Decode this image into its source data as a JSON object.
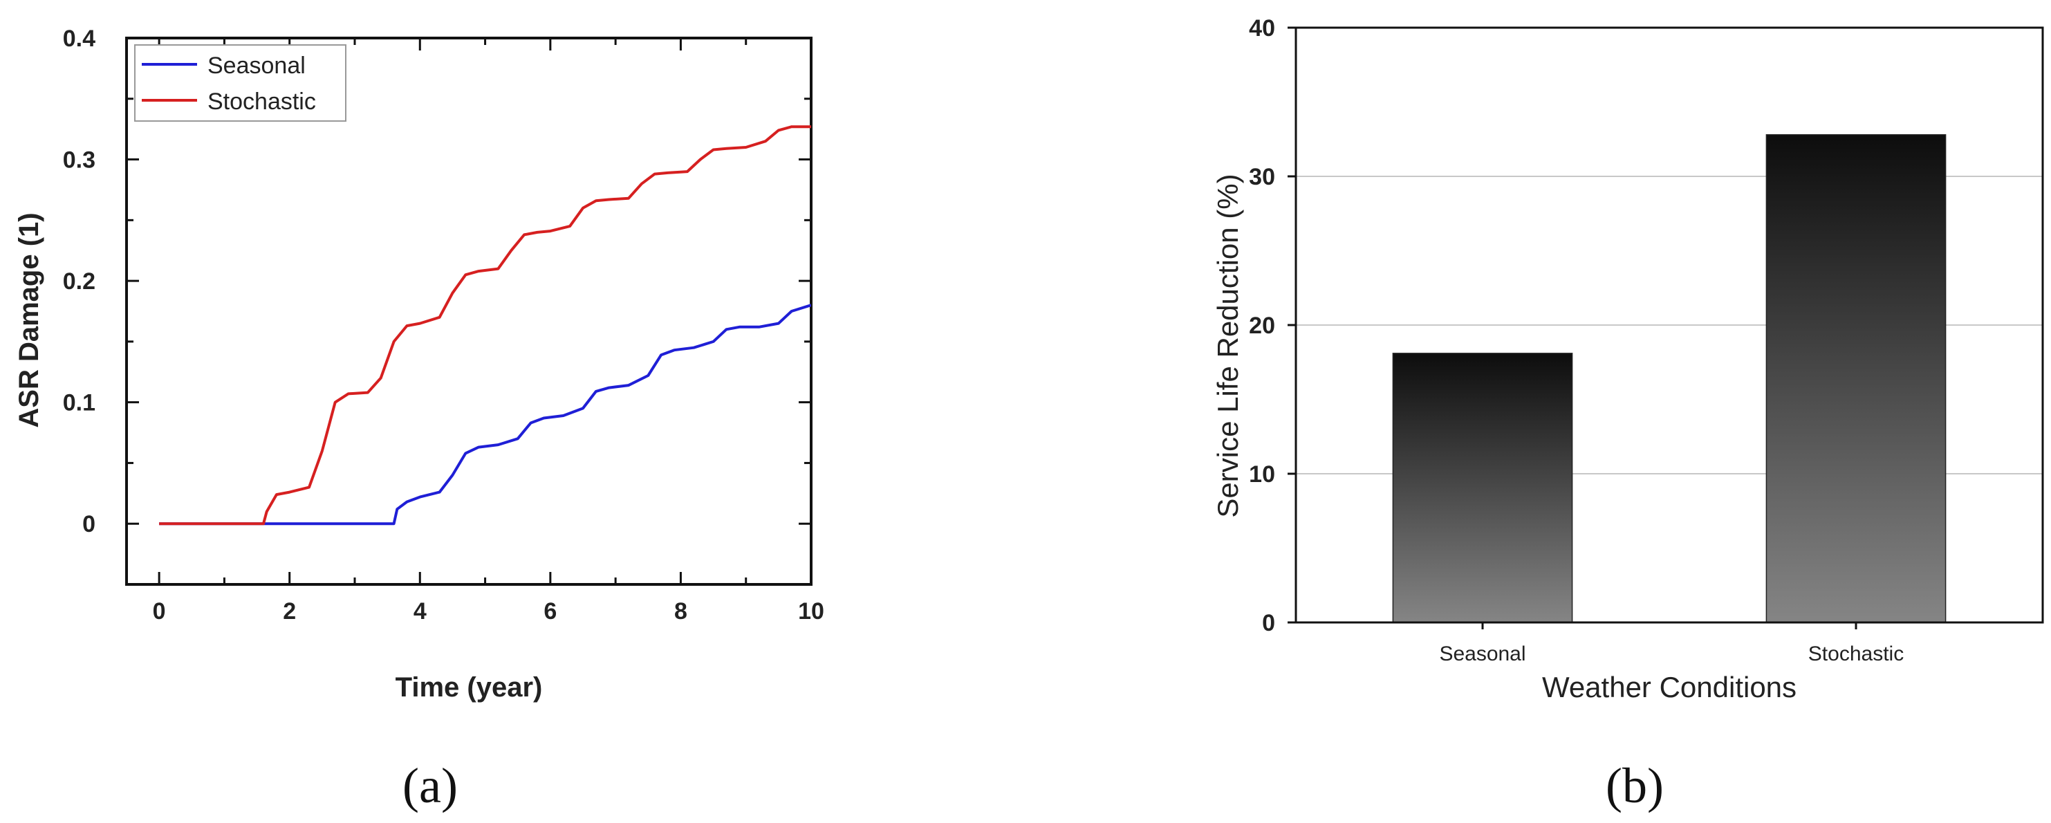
{
  "chart_data": [
    {
      "panel_label": "(a)",
      "type": "line",
      "xlabel": "Time (year)",
      "ylabel": "ASR Damage (1)",
      "xlim": [
        -0.5,
        10
      ],
      "ylim": [
        -0.05,
        0.4
      ],
      "xticks": [
        "0",
        "2",
        "4",
        "6",
        "8",
        "10"
      ],
      "yticks": [
        "0",
        "0.1",
        "0.2",
        "0.3",
        "0.4"
      ],
      "legend": "top-left",
      "series": [
        {
          "name": "Seasonal",
          "color": "#1f1fd6",
          "x": [
            0,
            1,
            2,
            3,
            3.6,
            3.65,
            3.8,
            4.0,
            4.3,
            4.5,
            4.7,
            4.9,
            5.2,
            5.5,
            5.7,
            5.9,
            6.2,
            6.5,
            6.7,
            6.9,
            7.2,
            7.5,
            7.7,
            7.9,
            8.2,
            8.5,
            8.7,
            8.9,
            9.2,
            9.5,
            9.7,
            10.0
          ],
          "y": [
            0,
            0,
            0,
            0,
            0,
            0.012,
            0.018,
            0.022,
            0.026,
            0.04,
            0.058,
            0.063,
            0.065,
            0.07,
            0.083,
            0.087,
            0.089,
            0.095,
            0.109,
            0.112,
            0.114,
            0.122,
            0.139,
            0.143,
            0.145,
            0.15,
            0.16,
            0.162,
            0.162,
            0.165,
            0.175,
            0.18
          ]
        },
        {
          "name": "Stochastic",
          "color": "#d62020",
          "x": [
            0,
            1,
            1.6,
            1.65,
            1.8,
            2.0,
            2.3,
            2.5,
            2.7,
            2.9,
            3.2,
            3.4,
            3.6,
            3.8,
            4.0,
            4.3,
            4.5,
            4.7,
            4.9,
            5.2,
            5.4,
            5.6,
            5.8,
            6.0,
            6.3,
            6.5,
            6.7,
            6.9,
            7.2,
            7.4,
            7.6,
            7.8,
            8.1,
            8.3,
            8.5,
            8.7,
            9.0,
            9.3,
            9.5,
            9.7,
            10.0
          ],
          "y": [
            0,
            0,
            0,
            0.01,
            0.024,
            0.026,
            0.03,
            0.06,
            0.1,
            0.107,
            0.108,
            0.12,
            0.15,
            0.163,
            0.165,
            0.17,
            0.19,
            0.205,
            0.208,
            0.21,
            0.225,
            0.238,
            0.24,
            0.241,
            0.245,
            0.26,
            0.266,
            0.267,
            0.268,
            0.28,
            0.288,
            0.289,
            0.29,
            0.3,
            0.308,
            0.309,
            0.31,
            0.315,
            0.324,
            0.327,
            0.327
          ]
        }
      ]
    },
    {
      "panel_label": "(b)",
      "type": "bar",
      "xlabel": "Weather Conditions",
      "ylabel": "Service Life Reduction (%)",
      "categories": [
        "Seasonal",
        "Stochastic"
      ],
      "values": [
        18.1,
        32.8
      ],
      "ylim": [
        0,
        40
      ],
      "yticks": [
        "0",
        "10",
        "20",
        "30",
        "40"
      ],
      "grid": "horizontal",
      "bar_gradient": [
        "#0d0d0d",
        "#858585"
      ]
    }
  ]
}
